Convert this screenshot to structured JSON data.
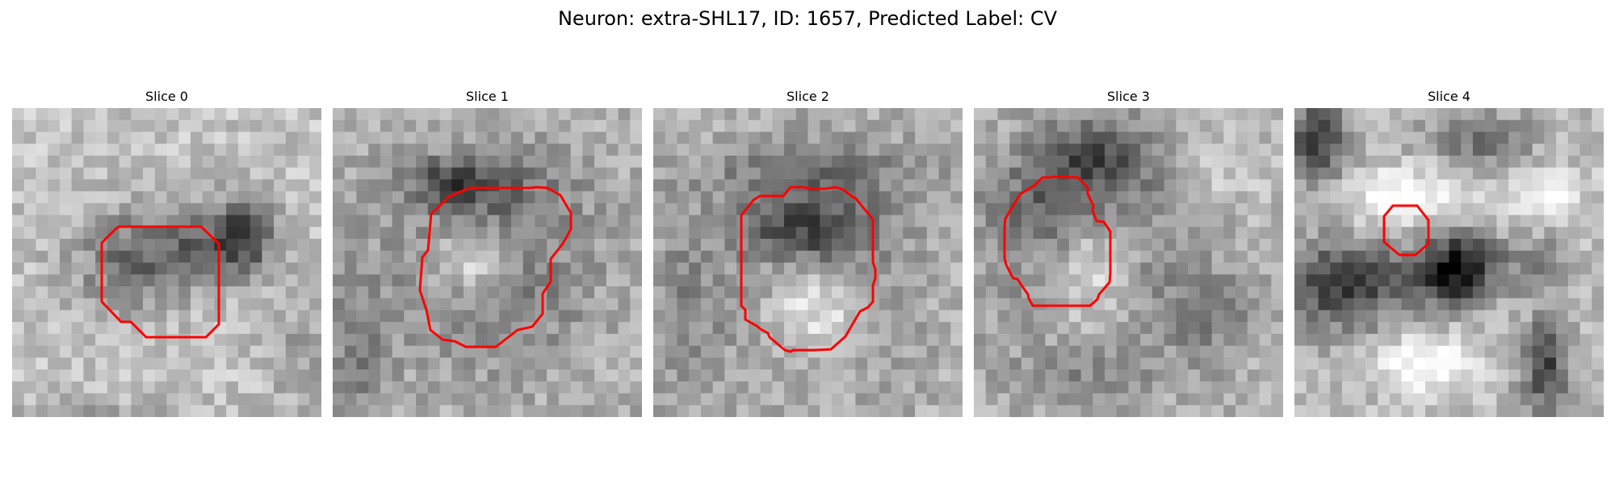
{
  "figure": {
    "title": "Neuron: extra-SHL17, ID: 1657, Predicted Label: CV"
  },
  "panels": [
    {
      "title": "Slice 0",
      "contour_color": "#ff0000"
    },
    {
      "title": "Slice 1",
      "contour_color": "#ff0000"
    },
    {
      "title": "Slice 2",
      "contour_color": "#ff0000"
    },
    {
      "title": "Slice 3",
      "contour_color": "#ff0000"
    },
    {
      "title": "Slice 4",
      "contour_color": "#ff0000"
    }
  ]
}
